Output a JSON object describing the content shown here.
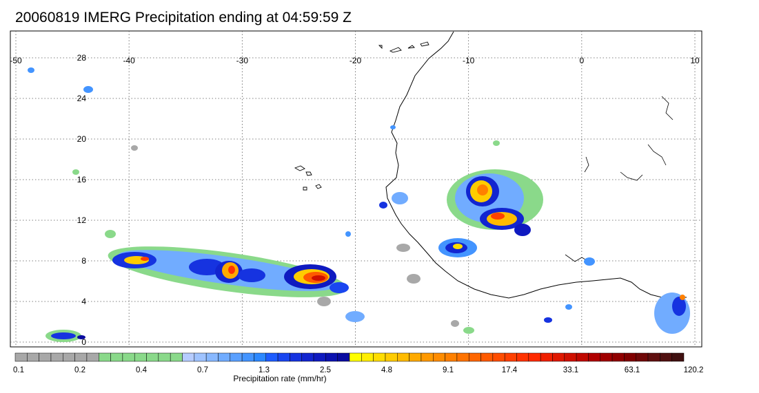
{
  "title": "20060819 IMERG Precipitation ending at 04:59:59 Z",
  "map": {
    "lon_range": [
      -50,
      10
    ],
    "lat_range": [
      -1,
      29
    ],
    "lon_ticks": [
      "-50",
      "-40",
      "-30",
      "-20",
      "-10",
      "0",
      "10"
    ],
    "lat_ticks": [
      "28",
      "24",
      "20",
      "16",
      "12",
      "8",
      "4",
      "0"
    ]
  },
  "colorbar": {
    "label": "Precipitation rate (mm/hr)",
    "tick_labels": [
      "0.1",
      "0.2",
      "0.4",
      "0.7",
      "1.3",
      "2.5",
      "4.8",
      "9.1",
      "17.4",
      "33.1",
      "63.1",
      "120.2"
    ],
    "colors": [
      "#a8a8a8",
      "#a8a8a8",
      "#a8a8a8",
      "#a8a8a8",
      "#a8a8a8",
      "#a8a8a8",
      "#a8a8a8",
      "#8ad98a",
      "#8ad98a",
      "#8ad98a",
      "#8ad98a",
      "#8ad98a",
      "#8ad98a",
      "#8ad98a",
      "#b6ccff",
      "#9fc3ff",
      "#88b8ff",
      "#71acff",
      "#5aa0ff",
      "#4394ff",
      "#2c88ff",
      "#1e5cff",
      "#1a46f0",
      "#1633e0",
      "#1225d0",
      "#0f1ac0",
      "#0c12b0",
      "#0a0ca0",
      "#ffff00",
      "#ffee00",
      "#ffdd00",
      "#ffcc00",
      "#ffbb00",
      "#ffaa00",
      "#ff9900",
      "#ff8c00",
      "#ff8000",
      "#ff7300",
      "#ff6600",
      "#ff5a00",
      "#ff4d00",
      "#ff4000",
      "#ff3300",
      "#ff2a00",
      "#f02000",
      "#e01800",
      "#d01000",
      "#c00800",
      "#b00000",
      "#a00000",
      "#900000",
      "#800000",
      "#700808",
      "#601010",
      "#501010",
      "#401010"
    ]
  }
}
